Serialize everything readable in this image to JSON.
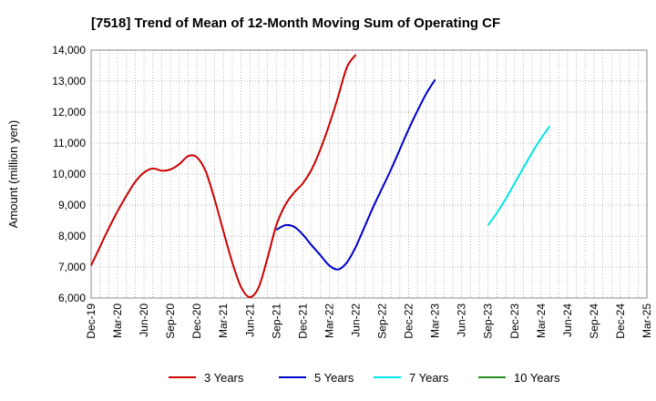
{
  "chart_data": {
    "type": "line",
    "title": "[7518]  Trend of Mean of 12-Month Moving Sum of Operating CF",
    "xlabel": "",
    "ylabel": "Amount (million yen)",
    "ylim": [
      6000,
      14000
    ],
    "yticks": [
      6000,
      7000,
      8000,
      9000,
      10000,
      11000,
      12000,
      13000,
      14000
    ],
    "ytick_labels": [
      "6,000",
      "7,000",
      "8,000",
      "9,000",
      "10,000",
      "11,000",
      "12,000",
      "13,000",
      "14,000"
    ],
    "xticks": [
      "Dec-19",
      "Mar-20",
      "Jun-20",
      "Sep-20",
      "Dec-20",
      "Mar-21",
      "Jun-21",
      "Sep-21",
      "Dec-21",
      "Mar-22",
      "Jun-22",
      "Sep-22",
      "Dec-22",
      "Mar-23",
      "Jun-23",
      "Sep-23",
      "Dec-23",
      "Mar-24",
      "Jun-24",
      "Sep-24",
      "Dec-24",
      "Mar-25"
    ],
    "grid": true,
    "legend_position": "bottom",
    "series": [
      {
        "name": "3 Years",
        "color": "#cc0000",
        "start_index": 0,
        "values": [
          7050,
          7650,
          8250,
          8800,
          9300,
          9750,
          10050,
          10180,
          10110,
          10150,
          10320,
          10580,
          10540,
          10080,
          9180,
          8150,
          7150,
          6350,
          6030,
          6350,
          7300,
          8350,
          9000,
          9400,
          9700,
          10150,
          10800,
          11600,
          12500,
          13450,
          13850
        ]
      },
      {
        "name": "5 Years",
        "color": "#0000cc",
        "start_index": 21,
        "values": [
          8200,
          8350,
          8300,
          8050,
          7700,
          7380,
          7050,
          6920,
          7150,
          7650,
          8300,
          8950,
          9550,
          10150,
          10800,
          11450,
          12050,
          12600,
          13050
        ]
      },
      {
        "name": "7 Years",
        "color": "#00e5e5",
        "start_index": 45,
        "values": [
          8350,
          8750,
          9200,
          9700,
          10200,
          10700,
          11150,
          11550
        ]
      },
      {
        "name": "10 Years",
        "color": "#228b22",
        "start_index": 0,
        "values": []
      }
    ]
  }
}
